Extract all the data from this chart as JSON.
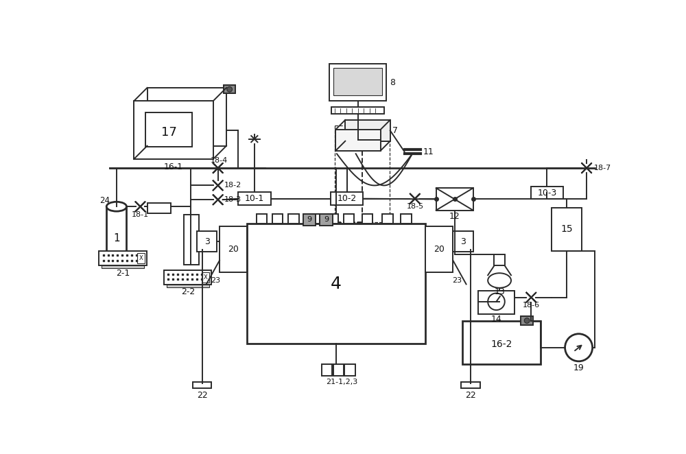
{
  "lc": "#2a2a2a",
  "lw": 1.4,
  "gray": "#888888"
}
